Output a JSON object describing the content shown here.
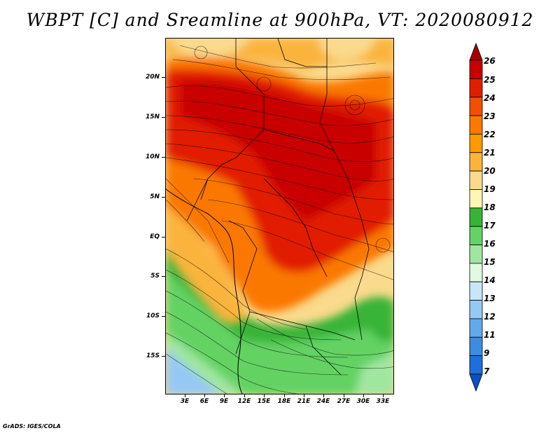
{
  "title": "WBPT [C] and Sreamline at 900hPa, VT: 2020080912",
  "footer": "GrADS: IGES/COLA",
  "map": {
    "y_axis_labels": [
      "20N",
      "15N",
      "10N",
      "5N",
      "EQ",
      "5S",
      "10S",
      "15S"
    ],
    "x_axis_labels": [
      "3E",
      "6E",
      "9E",
      "12E",
      "15E",
      "18E",
      "21E",
      "24E",
      "27E",
      "30E",
      "33E"
    ]
  },
  "colorbar": {
    "labels": [
      "26",
      "25",
      "24",
      "23",
      "22",
      "21",
      "20",
      "19",
      "18",
      "17",
      "16",
      "15",
      "14",
      "13",
      "12",
      "11",
      "9",
      "7"
    ],
    "colors": [
      "#a50000",
      "#c80000",
      "#e11e00",
      "#f05000",
      "#fa7800",
      "#fc9a00",
      "#fab43c",
      "#fada8c",
      "#fff5b4",
      "#37b437",
      "#64d264",
      "#a0e6a0",
      "#e1fae1",
      "#c8e6fa",
      "#96c8f5",
      "#64aaeb",
      "#3c8ce1",
      "#1e6edc",
      "#0a50c8"
    ]
  }
}
